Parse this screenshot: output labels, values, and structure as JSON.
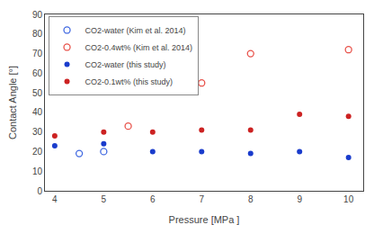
{
  "chart_data": {
    "type": "scatter",
    "xlabel": "Pressure [MPa ]",
    "ylabel": "Contact Angle [°]",
    "xlim": [
      3.8,
      10.3
    ],
    "xticks": [
      4,
      5,
      6,
      7,
      8,
      9,
      10
    ],
    "ylim": [
      0,
      90
    ],
    "yticks": [
      0,
      10,
      20,
      30,
      40,
      50,
      60,
      70,
      80,
      90
    ],
    "grid": false,
    "legend": "upper left",
    "series": [
      {
        "name": "CO2-water (Kim et al. 2014)",
        "color": "#4169e1",
        "marker": "circle-open",
        "x": [
          4.5,
          5.0
        ],
        "values": [
          19,
          20
        ]
      },
      {
        "name": "CO2-0.4wt% (Kim et al. 2014)",
        "color": "#e8524a",
        "marker": "circle-open",
        "x": [
          5.5,
          7.0,
          8.0,
          10.0
        ],
        "values": [
          33,
          55,
          70,
          72
        ]
      },
      {
        "name": "CO2-water (this study)",
        "color": "#1a3ccc",
        "marker": "circle",
        "x": [
          4.0,
          5.0,
          6.0,
          7.0,
          8.0,
          9.0,
          10.0
        ],
        "values": [
          23,
          24,
          20,
          20,
          19,
          20,
          17
        ]
      },
      {
        "name": "CO2-0.1wt% (this study)",
        "color": "#cc2222",
        "marker": "circle",
        "x": [
          4.0,
          5.0,
          6.0,
          7.0,
          8.0,
          9.0,
          10.0
        ],
        "values": [
          28,
          30,
          30,
          31,
          31,
          39,
          38
        ]
      }
    ]
  }
}
